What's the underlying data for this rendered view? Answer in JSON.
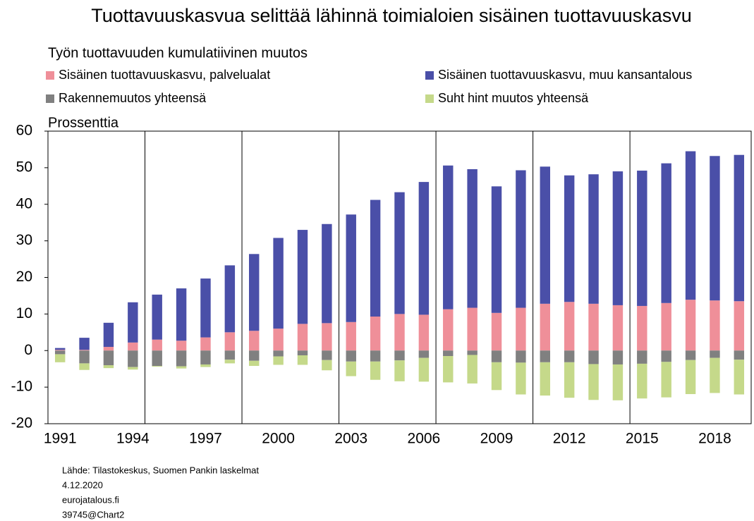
{
  "chart_data": {
    "type": "stacked_bar",
    "title": "Tuottavuuskasvua selittää lähinnä toimialoien sisäinen tuottavuuskasvu",
    "subtitle": "Työn tuottavuuden kumulatiivinen muutos",
    "y_label": "Prossenttia",
    "categories": [
      "1991",
      null,
      null,
      "1994",
      null,
      null,
      "1997",
      null,
      null,
      "2000",
      null,
      null,
      "2003",
      null,
      null,
      "2006",
      null,
      null,
      "2009",
      null,
      null,
      "2012",
      null,
      null,
      "2015",
      null,
      null,
      "2018",
      null
    ],
    "series": [
      {
        "name": "Sisäinen tuottavuuskasvu, palvelualat",
        "color": "#ef8f99",
        "values": [
          0.2,
          0.2,
          1,
          2.2,
          3,
          2.7,
          3.6,
          5,
          5.4,
          6,
          7.3,
          7.5,
          7.8,
          9.3,
          10,
          9.8,
          11.3,
          11.7,
          10.3,
          11.7,
          12.8,
          13.3,
          12.8,
          12.4,
          12.2,
          13,
          13.9,
          13.7,
          13.5
        ]
      },
      {
        "name": "Sisäinen tuottavuuskasvu, muu kansantalous",
        "color": "#4a4fa8",
        "values": [
          0.5,
          3.3,
          6.6,
          11,
          12.3,
          14.3,
          16.1,
          18.3,
          21,
          24.8,
          25.7,
          27.1,
          29.4,
          31.9,
          33.3,
          36.3,
          39.3,
          37.9,
          34.6,
          37.6,
          37.5,
          34.6,
          35.4,
          36.6,
          37,
          38.2,
          40.6,
          39.5,
          40
        ]
      },
      {
        "name": "Rakennemuutos yhteensä",
        "color": "#808080",
        "values": [
          -1,
          -3.5,
          -4,
          -4.5,
          -4.2,
          -4.3,
          -3.8,
          -2.5,
          -2.8,
          -1.6,
          -1.3,
          -2.6,
          -3,
          -3,
          -2.7,
          -2,
          -1.5,
          -1.2,
          -3.2,
          -3.3,
          -3.2,
          -3.2,
          -3.7,
          -3.8,
          -3.6,
          -3.1,
          -2.6,
          -2,
          -2.5
        ]
      },
      {
        "name": "Suht hint muutos yhteensä",
        "color": "#c5d98a",
        "values": [
          -2.2,
          -1.8,
          -0.8,
          -0.7,
          -0.2,
          -0.6,
          -0.7,
          -1,
          -1.4,
          -2.3,
          -2.6,
          -2.8,
          -4,
          -5,
          -5.7,
          -6.5,
          -7.2,
          -7.8,
          -7.6,
          -8.7,
          -9.1,
          -9.7,
          -9.8,
          -9.8,
          -9.5,
          -9.7,
          -9.3,
          -9.6,
          -9.5
        ]
      }
    ],
    "ylim": [
      -20,
      60
    ],
    "yticks": [
      -20,
      -10,
      0,
      10,
      20,
      30,
      40,
      50,
      60
    ],
    "source": [
      "Lähde: Tilastokeskus, Suomen Pankin laskelmat",
      "4.12.2020",
      "eurojatalous.fi",
      "39745@Chart2"
    ]
  }
}
